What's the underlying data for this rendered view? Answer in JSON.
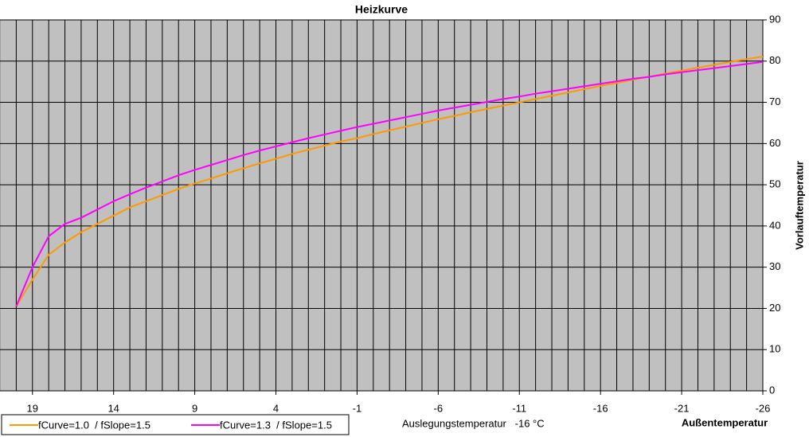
{
  "chart_data": {
    "type": "line",
    "title": "Heizkurve",
    "x_label": "Außentemperatur",
    "y_label": "Vorlauftemperatur",
    "annotation": "Auslegungstemperatur   -16 °C",
    "x": [
      20,
      19,
      18,
      17,
      16,
      15,
      14,
      13,
      12,
      11,
      10,
      9,
      8,
      7,
      6,
      5,
      4,
      3,
      2,
      1,
      0,
      -1,
      -2,
      -3,
      -4,
      -5,
      -6,
      -7,
      -8,
      -9,
      -10,
      -11,
      -12,
      -13,
      -14,
      -15,
      -16,
      -17,
      -18,
      -19,
      -20,
      -21,
      -22,
      -23,
      -24,
      -25,
      -26
    ],
    "series": [
      {
        "name": "fCurve=1.0  / fSlope=1.5",
        "color": "#ff9900",
        "values": [
          20.5,
          27,
          33,
          36,
          38.5,
          40.5,
          42.5,
          44.5,
          46,
          47.5,
          49,
          50.3,
          51.5,
          52.8,
          54,
          55.2,
          56.3,
          57.5,
          58.5,
          59.5,
          60.5,
          61.3,
          62.3,
          63.2,
          64.1,
          65,
          65.9,
          66.7,
          67.6,
          68.4,
          69.2,
          70,
          70.8,
          71.6,
          72.4,
          73.2,
          74,
          74.7,
          75.5,
          76.2,
          77,
          77.7,
          78.4,
          79.1,
          79.8,
          80.5,
          81.1
        ]
      },
      {
        "name": "fCurve=1.3  / fSlope=1.5",
        "color": "#ff00ff",
        "values": [
          20.5,
          30,
          37.5,
          40.5,
          42,
          44,
          46,
          47.7,
          49.3,
          50.8,
          52.3,
          53.6,
          54.8,
          56,
          57.2,
          58.3,
          59.3,
          60.3,
          61.3,
          62.2,
          63.1,
          64,
          64.8,
          65.6,
          66.4,
          67.2,
          68,
          68.7,
          69.4,
          70.1,
          70.8,
          71.4,
          72.1,
          72.7,
          73.3,
          73.9,
          74.5,
          75.1,
          75.7,
          76.2,
          76.8,
          77.3,
          77.8,
          78.3,
          78.8,
          79.3,
          79.8
        ]
      }
    ],
    "xlim": [
      21,
      -26
    ],
    "xticks": [
      19,
      14,
      9,
      4,
      -1,
      -6,
      -11,
      -16,
      -21,
      -26
    ],
    "ylim": [
      0,
      90
    ],
    "yticks": [
      0,
      10,
      20,
      30,
      40,
      50,
      60,
      70,
      80,
      90
    ],
    "grid": true,
    "background": "#c0c0c0",
    "legend": "bottom-left"
  }
}
